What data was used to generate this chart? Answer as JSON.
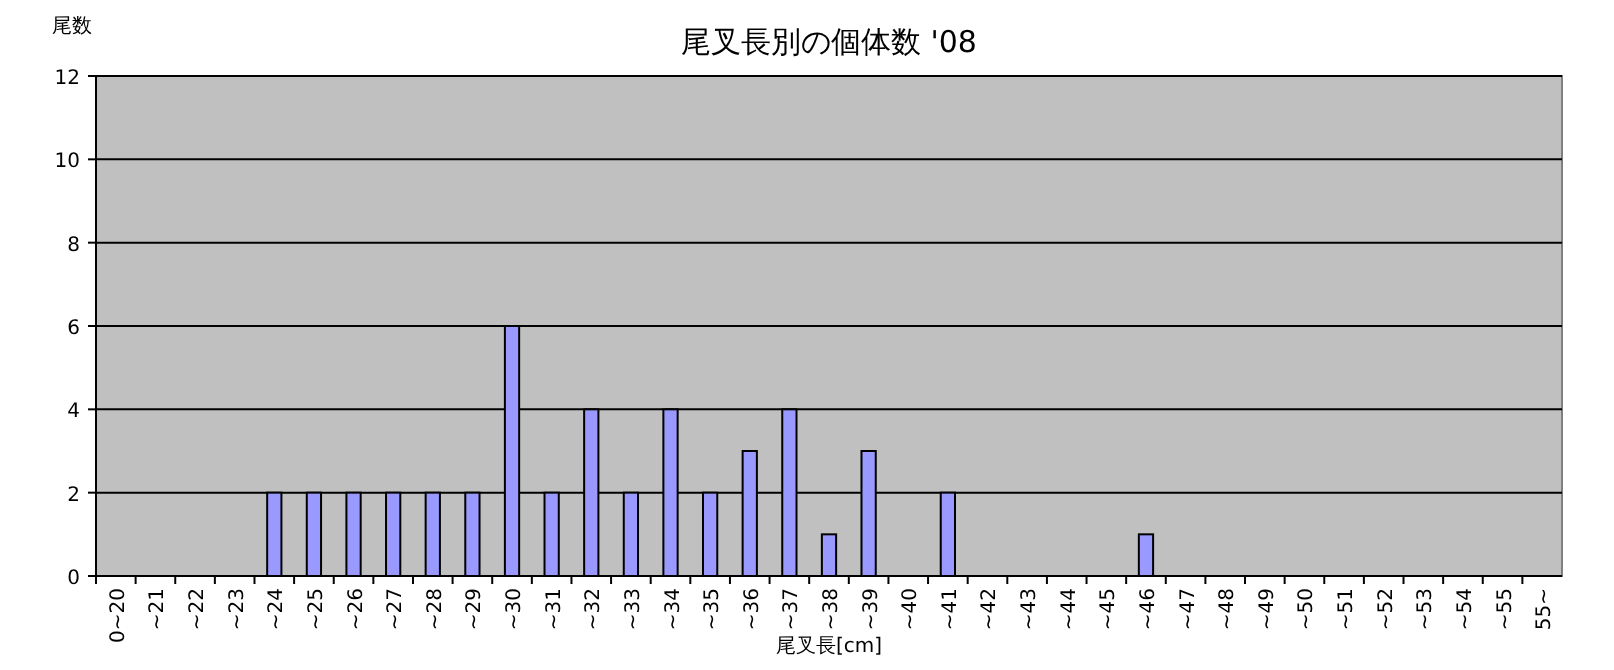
{
  "chart_data": {
    "type": "bar",
    "title": "尾叉長別の個体数 '08",
    "xlabel": "尾叉長[cm]",
    "ylabel": "尾数",
    "categories": [
      "0~20",
      "~21",
      "~22",
      "~23",
      "~24",
      "~25",
      "~26",
      "~27",
      "~28",
      "~29",
      "~30",
      "~31",
      "~32",
      "~33",
      "~34",
      "~35",
      "~36",
      "~37",
      "~38",
      "~39",
      "~40",
      "~41",
      "~42",
      "~43",
      "~44",
      "~45",
      "~46",
      "~47",
      "~48",
      "~49",
      "~50",
      "~51",
      "~52",
      "~53",
      "~54",
      "~55",
      "55~"
    ],
    "values": [
      0,
      0,
      0,
      0,
      2,
      2,
      2,
      2,
      2,
      2,
      6,
      2,
      4,
      2,
      4,
      2,
      3,
      4,
      1,
      3,
      0,
      2,
      0,
      0,
      0,
      0,
      1,
      0,
      0,
      0,
      0,
      0,
      0,
      0,
      0,
      0,
      0
    ],
    "color": "#9999ff",
    "ylim": [
      0,
      12
    ],
    "yticks": [
      0,
      2,
      4,
      6,
      8,
      10,
      12
    ],
    "grid": "y"
  }
}
